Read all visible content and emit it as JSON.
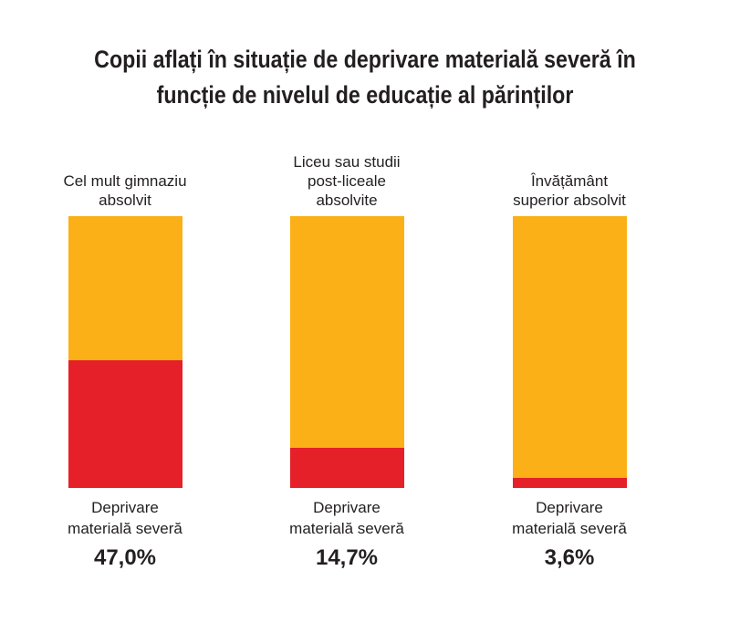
{
  "chart_data": {
    "type": "bar",
    "title_lines": [
      "Copii aflați în situație de deprivare materială severă în",
      "funcție de nivelul de educație al părinților"
    ],
    "categories": [
      [
        "Cel mult gimnaziu",
        "absolvit"
      ],
      [
        "Liceu sau studii",
        "post-liceale",
        "absolvite"
      ],
      [
        "Învățământ",
        "superior absolvit"
      ]
    ],
    "series_label": [
      "Deprivare",
      "materială severă"
    ],
    "values": [
      47.0,
      14.7,
      3.6
    ],
    "value_labels": [
      "47,0%",
      "14,7%",
      "3,6%"
    ],
    "ylim": [
      0,
      100
    ],
    "colors": {
      "deprivation": "#e52028",
      "rest": "#fbb018"
    }
  }
}
